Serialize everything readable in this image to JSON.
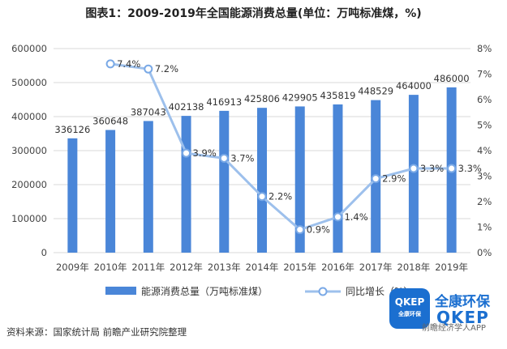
{
  "title": "图表1：2009-2019年全国能源消费总量(单位：万吨标准煤，%)",
  "source": "资料来源：国家统计局 前瞻产业研究院整理",
  "logo": {
    "badge_top": "QKEP",
    "badge_bottom": "全康环保",
    "name": "全康环保",
    "english": "QKEP",
    "sub": "前瞻经济学人APP"
  },
  "colors": {
    "bar": "#4a86d8",
    "line": "#9dc0ec",
    "marker_fill": "#ffffff",
    "marker_stroke": "#7aa9e6",
    "grid": "#d9d9d9",
    "text": "#444444"
  },
  "chart_data": {
    "type": "bar",
    "categories": [
      "2009年",
      "2010年",
      "2011年",
      "2012年",
      "2013年",
      "2014年",
      "2015年",
      "2016年",
      "2017年",
      "2018年",
      "2019年"
    ],
    "series": [
      {
        "name": "能源消费总量（万吨标准煤）",
        "type": "bar",
        "axis": "left",
        "values": [
          336126,
          360648,
          387043,
          402138,
          416913,
          425806,
          429905,
          435819,
          448529,
          464000,
          486000
        ],
        "labels": [
          "336126",
          "360648",
          "387043",
          "402138",
          "416913",
          "425806",
          "429905",
          "435819",
          "448529",
          "464000",
          "486000"
        ]
      },
      {
        "name": "同比增长（%）",
        "type": "line",
        "axis": "right",
        "values": [
          null,
          7.4,
          7.2,
          3.9,
          3.7,
          2.2,
          0.9,
          1.4,
          2.9,
          3.3,
          3.3
        ],
        "labels": [
          "",
          "7.4%",
          "7.2%",
          "3.9%",
          "3.7%",
          "2.2%",
          "0.9%",
          "1.4%",
          "2.9%",
          "3.3%",
          "3.3%"
        ]
      }
    ],
    "y_left": {
      "min": 0,
      "max": 600000,
      "ticks": [
        "0",
        "100000",
        "200000",
        "300000",
        "400000",
        "500000",
        "600000"
      ]
    },
    "y_right": {
      "min": 0,
      "max": 8,
      "ticks": [
        "0%",
        "1%",
        "2%",
        "3%",
        "4%",
        "5%",
        "6%",
        "7%",
        "8%"
      ]
    },
    "grid": true,
    "legend_position": "bottom"
  }
}
